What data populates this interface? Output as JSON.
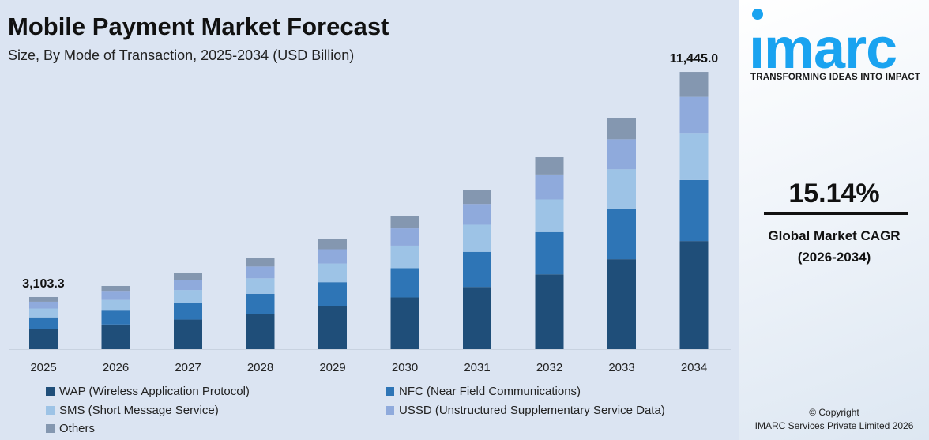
{
  "header": {
    "title": "Mobile Payment Market Forecast",
    "subtitle": "Size, By Mode of Transaction, 2025-2034 (USD Billion)"
  },
  "chart_data": {
    "type": "bar",
    "stacked": true,
    "title": "Mobile Payment Market Forecast",
    "subtitle": "Size, By Mode of Transaction, 2025-2034 (USD Billion)",
    "categories": [
      "2025",
      "2026",
      "2027",
      "2028",
      "2029",
      "2030",
      "2031",
      "2032",
      "2033",
      "2034"
    ],
    "series": [
      {
        "name": "WAP (Wireless Application Protocol)",
        "color": "#1f4e79",
        "values": [
          1210.3,
          1370,
          1553,
          1770,
          2044,
          2375,
          2763,
          3231,
          3790,
          4463.6
        ]
      },
      {
        "name": "NFC (Near Field Communications)",
        "color": "#2e75b6",
        "values": [
          682.7,
          773,
          876,
          998,
          1153,
          1340,
          1558,
          1822,
          2138,
          2517.9
        ]
      },
      {
        "name": "SMS (Short Message Service)",
        "color": "#9dc3e6",
        "values": [
          527.6,
          597,
          677,
          771,
          891,
          1035,
          1204,
          1408,
          1652,
          1945.7
        ]
      },
      {
        "name": "USSD (Unstructured Supplementary Service Data)",
        "color": "#8faadc",
        "values": [
          403.4,
          457,
          518,
          590,
          681,
          792,
          921,
          1077,
          1263,
          1487.9
        ]
      },
      {
        "name": "Others",
        "color": "#8497b0",
        "values": [
          279.3,
          316,
          357,
          409,
          471,
          547,
          638,
          746,
          876,
          1029.9
        ]
      }
    ],
    "data_labels": [
      {
        "category": "2025",
        "text": "3,103.3"
      },
      {
        "category": "2034",
        "text": "11,445.0"
      }
    ],
    "xlabel": "",
    "ylabel": "",
    "grid": false,
    "legend_position": "bottom"
  },
  "brand": {
    "logo": "imarc",
    "tagline": "TRANSFORMING IDEAS INTO IMPACT",
    "color": "#1aa3f0"
  },
  "cagr": {
    "value": "15.14%",
    "label": "Global Market CAGR",
    "period": "(2026-2034)"
  },
  "footer": {
    "copyright": "© Copyright",
    "company": "IMARC Services Private Limited 2026"
  }
}
